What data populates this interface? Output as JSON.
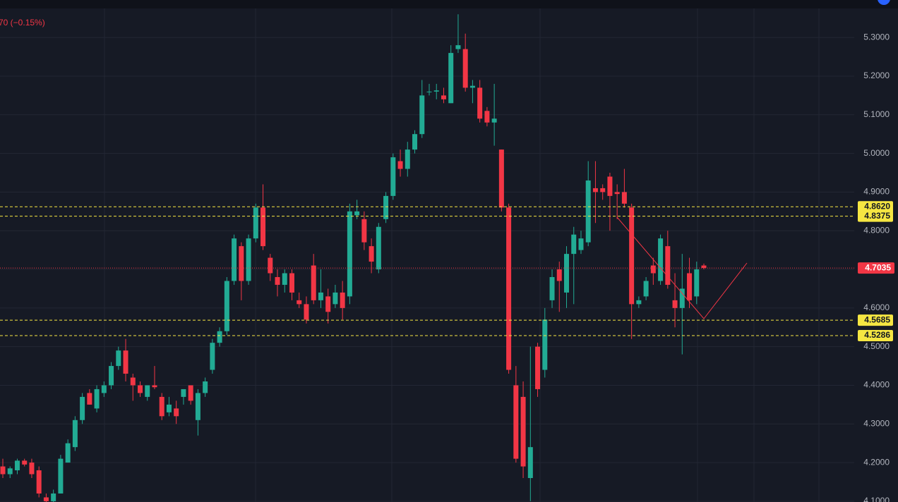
{
  "chart_data": {
    "type": "candlestick",
    "header_text": "70 (−0.15%)",
    "up_color": "#22ab94",
    "down_color": "#f23645",
    "open": [
      4.19,
      4.17,
      4.18,
      4.205,
      4.2,
      4.18,
      4.11,
      4.1,
      4.12,
      4.2,
      4.24,
      4.31,
      4.38,
      4.34,
      4.38,
      4.4,
      4.45,
      4.49,
      4.42,
      4.4,
      4.37,
      4.4,
      4.37,
      4.33,
      4.34,
      4.37,
      4.4,
      4.31,
      4.38,
      4.44,
      4.51,
      4.54,
      4.67,
      4.76,
      4.67,
      4.78,
      4.86,
      4.73,
      4.68,
      4.66,
      4.69,
      4.62,
      4.61,
      4.71,
      4.62,
      4.63,
      4.61,
      4.64,
      4.63,
      4.84,
      4.83,
      4.76,
      4.7,
      4.83,
      4.89,
      4.98,
      4.96,
      5.01,
      5.05,
      5.16,
      5.16,
      5.15,
      5.13,
      5.27,
      5.27,
      5.17,
      5.17,
      5.11,
      5.08,
      5.01,
      4.86,
      4.4,
      4.37,
      4.16,
      4.5,
      4.44,
      4.62,
      4.7,
      4.64,
      4.74,
      4.75,
      4.77,
      4.91,
      4.91,
      4.94,
      4.9,
      4.9,
      4.86,
      4.61,
      4.63,
      4.71,
      4.67,
      4.76,
      4.62,
      4.6,
      4.69,
      4.63,
      4.71
    ],
    "high": [
      4.21,
      4.19,
      4.21,
      4.21,
      4.21,
      4.19,
      4.12,
      4.13,
      4.22,
      4.26,
      4.32,
      4.38,
      4.39,
      4.4,
      4.41,
      4.46,
      4.5,
      4.52,
      4.43,
      4.41,
      4.4,
      4.45,
      4.38,
      4.37,
      4.36,
      4.39,
      4.4,
      4.39,
      4.42,
      4.52,
      4.55,
      4.68,
      4.79,
      4.77,
      4.79,
      4.87,
      4.92,
      4.74,
      4.7,
      4.7,
      4.7,
      4.64,
      4.63,
      4.74,
      4.7,
      4.65,
      4.66,
      4.67,
      4.87,
      4.88,
      4.85,
      4.78,
      4.82,
      4.9,
      5.0,
      5.01,
      5.03,
      5.06,
      5.19,
      5.18,
      5.18,
      5.17,
      5.28,
      5.36,
      5.31,
      5.19,
      5.19,
      5.12,
      5.18,
      5.01,
      4.87,
      4.45,
      4.41,
      4.5,
      4.51,
      4.6,
      4.7,
      4.72,
      4.76,
      4.81,
      4.8,
      4.98,
      4.98,
      4.92,
      4.95,
      4.92,
      4.96,
      4.87,
      4.63,
      4.68,
      4.73,
      4.79,
      4.8,
      4.69,
      4.74,
      4.73,
      4.72,
      4.715
    ],
    "low": [
      4.16,
      4.16,
      4.17,
      4.19,
      4.16,
      4.11,
      4.09,
      4.09,
      4.12,
      4.2,
      4.23,
      4.3,
      4.35,
      4.33,
      4.37,
      4.39,
      4.44,
      4.41,
      4.36,
      4.37,
      4.36,
      4.39,
      4.31,
      4.32,
      4.3,
      4.35,
      4.35,
      4.27,
      4.37,
      4.43,
      4.5,
      4.53,
      4.66,
      4.62,
      4.66,
      4.77,
      4.75,
      4.67,
      4.63,
      4.64,
      4.62,
      4.6,
      4.56,
      4.61,
      4.6,
      4.56,
      4.6,
      4.57,
      4.61,
      4.83,
      4.75,
      4.69,
      4.69,
      4.82,
      4.88,
      4.94,
      4.94,
      5.0,
      5.04,
      5.15,
      5.14,
      5.13,
      5.13,
      5.26,
      5.16,
      5.13,
      5.08,
      5.07,
      5.02,
      4.85,
      4.43,
      4.2,
      4.16,
      4.1,
      4.37,
      4.42,
      4.6,
      4.59,
      4.6,
      4.61,
      4.74,
      4.76,
      4.82,
      4.88,
      4.8,
      4.83,
      4.86,
      4.52,
      4.6,
      4.62,
      4.66,
      4.66,
      4.65,
      4.55,
      4.48,
      4.6,
      4.61,
      4.7
    ],
    "close": [
      4.17,
      4.185,
      4.205,
      4.195,
      4.17,
      4.12,
      4.1,
      4.12,
      4.21,
      4.25,
      4.31,
      4.37,
      4.35,
      4.39,
      4.4,
      4.45,
      4.49,
      4.43,
      4.4,
      4.38,
      4.4,
      4.395,
      4.32,
      4.35,
      4.32,
      4.39,
      4.36,
      4.38,
      4.41,
      4.51,
      4.54,
      4.67,
      4.78,
      4.67,
      4.78,
      4.86,
      4.76,
      4.69,
      4.66,
      4.69,
      4.64,
      4.61,
      4.57,
      4.62,
      4.64,
      4.59,
      4.64,
      4.6,
      4.85,
      4.85,
      4.77,
      4.72,
      4.81,
      4.89,
      4.99,
      4.96,
      5.01,
      5.05,
      5.15,
      5.16,
      5.163,
      5.14,
      5.26,
      5.28,
      5.17,
      5.175,
      5.09,
      5.08,
      5.09,
      4.86,
      4.44,
      4.21,
      4.19,
      4.24,
      4.39,
      4.57,
      4.68,
      4.67,
      4.74,
      4.79,
      4.78,
      4.93,
      4.9,
      4.9,
      4.89,
      4.895,
      4.87,
      4.61,
      4.62,
      4.67,
      4.69,
      4.78,
      4.66,
      4.6,
      4.65,
      4.62,
      4.7,
      4.7035
    ],
    "ylim": [
      4.098,
      5.397
    ],
    "yticks": [
      {
        "value": 4.1,
        "label": "4.1000"
      },
      {
        "value": 4.2,
        "label": "4.2000"
      },
      {
        "value": 4.3,
        "label": "4.3000"
      },
      {
        "value": 4.4,
        "label": "4.4000"
      },
      {
        "value": 4.5,
        "label": "4.5000"
      },
      {
        "value": 4.6,
        "label": "4.6000"
      },
      {
        "value": 4.7,
        "label": "4.7000"
      },
      {
        "value": 4.8,
        "label": "4.8000"
      },
      {
        "value": 4.9,
        "label": "4.9000"
      },
      {
        "value": 5.0,
        "label": "5.0000"
      },
      {
        "value": 5.1,
        "label": "5.1000"
      },
      {
        "value": 5.2,
        "label": "5.2000"
      },
      {
        "value": 5.3,
        "label": "5.3000"
      }
    ],
    "grid": true,
    "level_color": "#f5e642",
    "levels": [
      {
        "value": 4.862,
        "label": "4.8620"
      },
      {
        "value": 4.8375,
        "label": "4.8375"
      },
      {
        "value": 4.5685,
        "label": "4.5685"
      },
      {
        "value": 4.5286,
        "label": "4.5286"
      }
    ],
    "last_price": 4.7035
  }
}
